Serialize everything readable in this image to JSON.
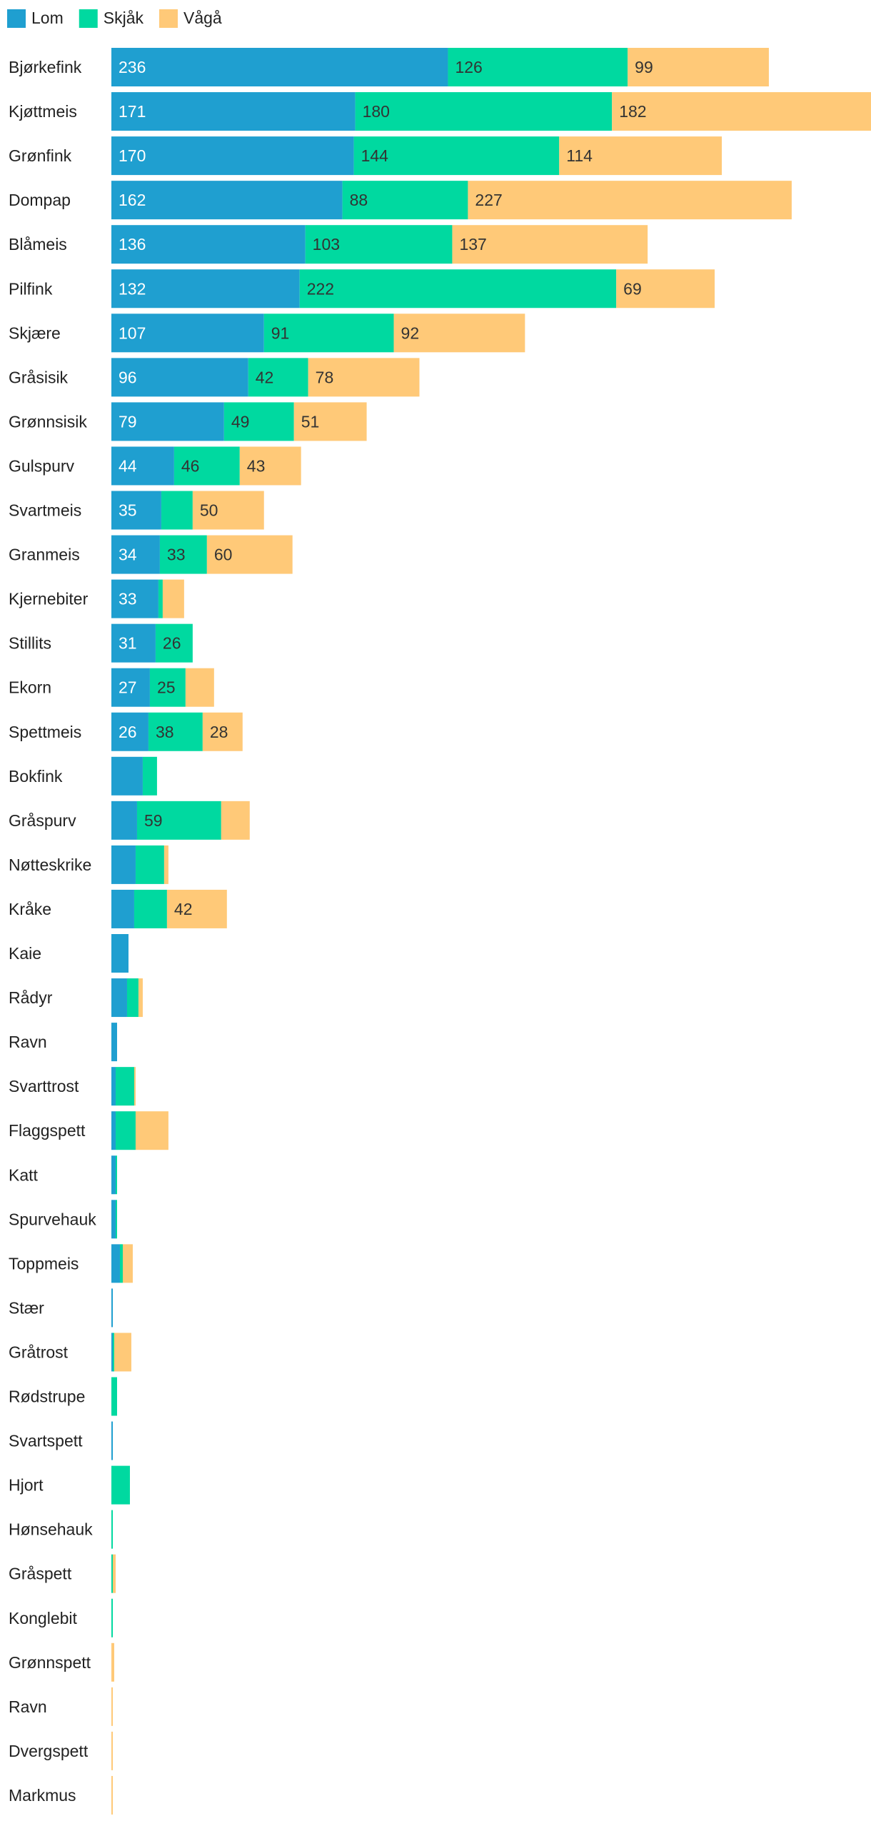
{
  "chart_data": {
    "type": "bar",
    "orientation": "horizontal",
    "stacked": true,
    "title": "",
    "xlabel": "",
    "ylabel": "",
    "grid": false,
    "legend_position": "top-left",
    "categories": [
      "Bjørkefink",
      "Kjøttmeis",
      "Grønfink",
      "Dompap",
      "Blåmeis",
      "Pilfink",
      "Skjære",
      "Gråsisik",
      "Grønnsisik",
      "Gulspurv",
      "Svartmeis",
      "Granmeis",
      "Kjernebiter",
      "Stillits",
      "Ekorn",
      "Spettmeis",
      "Bokfink",
      "Gråspurv",
      "Nøtteskrike",
      "Kråke",
      "Kaie",
      "Rådyr",
      "Ravn",
      "Svarttrost",
      "Flaggspett",
      "Katt",
      "Spurvehauk",
      "Toppmeis",
      "Stær",
      "Gråtrost",
      "Rødstrupe",
      "Svartspett",
      "Hjort",
      "Hønsehauk",
      "Gråspett",
      "Konglebit",
      "Grønnspett",
      "Ravn",
      "Dvergspett",
      "Markmus"
    ],
    "series": [
      {
        "name": "Lom",
        "color": "#1f9fd0",
        "values": [
          236,
          171,
          170,
          162,
          136,
          132,
          107,
          96,
          79,
          44,
          35,
          34,
          33,
          31,
          27,
          26,
          22,
          18,
          17,
          16,
          12,
          11,
          4,
          3,
          3,
          3,
          3,
          6,
          1,
          1,
          0,
          1,
          0,
          0,
          0,
          0,
          0,
          0,
          0,
          0
        ],
        "labels": [
          "236",
          "171",
          "170",
          "162",
          "136",
          "132",
          "107",
          "96",
          "79",
          "44",
          "35",
          "34",
          "33",
          "31",
          "27",
          "26",
          "",
          "",
          "",
          "",
          "",
          "",
          "",
          "",
          "",
          "",
          "",
          "",
          "",
          "",
          "",
          "",
          "",
          "",
          "",
          "",
          "",
          "",
          "",
          ""
        ]
      },
      {
        "name": "Skjåk",
        "color": "#00d9a0",
        "values": [
          126,
          180,
          144,
          88,
          103,
          222,
          91,
          42,
          49,
          46,
          22,
          33,
          3,
          26,
          25,
          38,
          10,
          59,
          20,
          23,
          0,
          8,
          0,
          13,
          14,
          1,
          1,
          2,
          0,
          1,
          4,
          0,
          13,
          1,
          1,
          1,
          0,
          0,
          0,
          0
        ],
        "labels": [
          "126",
          "180",
          "144",
          "88",
          "103",
          "222",
          "91",
          "42",
          "49",
          "46",
          "",
          "33",
          "",
          "26",
          "25",
          "38",
          "",
          "59",
          "",
          "",
          "",
          "",
          "",
          "",
          "",
          "",
          "",
          "",
          "",
          "",
          "",
          "",
          "",
          "",
          "",
          "",
          "",
          "",
          "",
          ""
        ]
      },
      {
        "name": "Vågå",
        "color": "#ffc978",
        "values": [
          99,
          182,
          114,
          227,
          137,
          69,
          92,
          78,
          51,
          43,
          50,
          60,
          15,
          0,
          20,
          28,
          0,
          20,
          3,
          42,
          0,
          3,
          0,
          1,
          23,
          0,
          0,
          7,
          0,
          12,
          0,
          0,
          0,
          0,
          2,
          0,
          2,
          1,
          1,
          1
        ],
        "labels": [
          "99",
          "182",
          "114",
          "227",
          "137",
          "69",
          "92",
          "78",
          "51",
          "43",
          "50",
          "60",
          "",
          "",
          "",
          "28",
          "",
          "",
          "",
          "42",
          "",
          "",
          "",
          "",
          "",
          "",
          "",
          "",
          "",
          "",
          "",
          "",
          "",
          "",
          "",
          "",
          "",
          "",
          "",
          ""
        ]
      }
    ]
  }
}
